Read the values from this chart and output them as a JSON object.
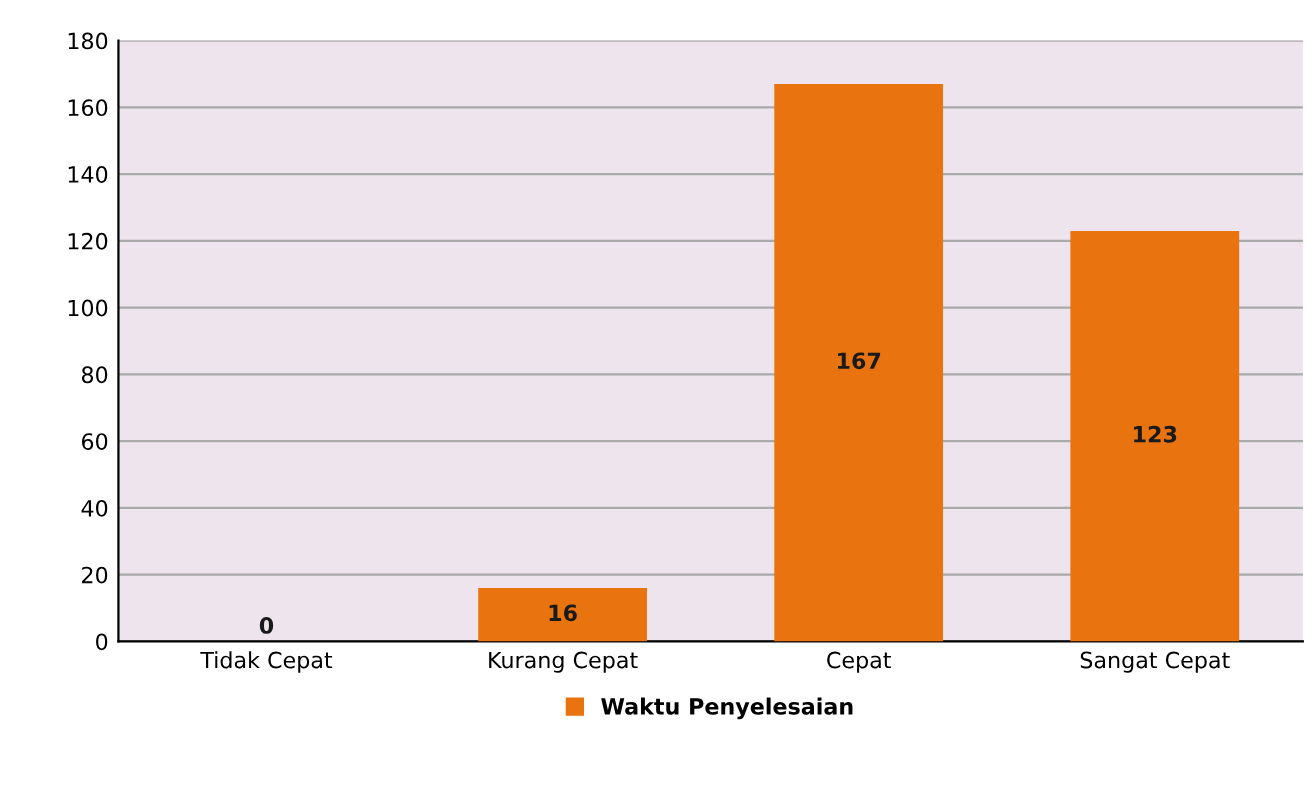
{
  "chart_data": {
    "type": "bar",
    "categories": [
      "Tidak Cepat",
      "Kurang Cepat",
      "Cepat",
      "Sangat Cepat"
    ],
    "series": [
      {
        "name": "Waktu Penyelesaian",
        "color": "#e8730f",
        "values": [
          0,
          16,
          167,
          123
        ]
      }
    ],
    "ylim": [
      0,
      180
    ],
    "yticks": [
      0,
      20,
      40,
      60,
      80,
      100,
      120,
      140,
      160,
      180
    ],
    "grid": "y",
    "legend": "bottom",
    "data_labels": true
  }
}
